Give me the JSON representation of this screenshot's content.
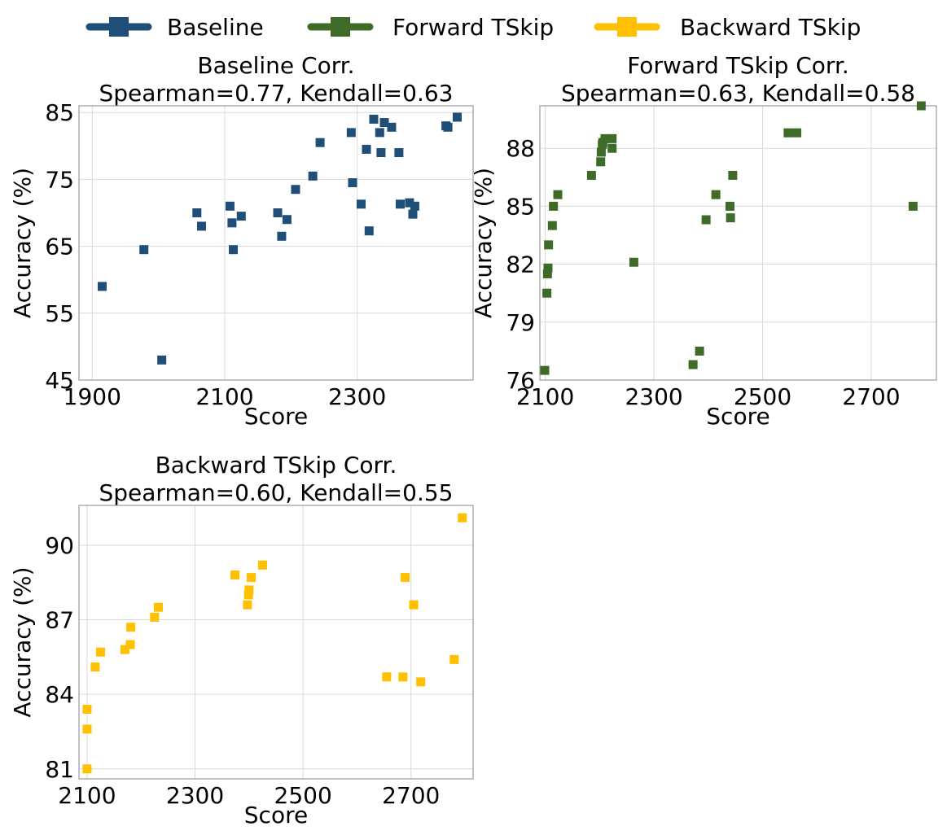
{
  "legend": [
    {
      "label": "Baseline",
      "color": "#1f4e79"
    },
    {
      "label": "Forward TSkip",
      "color": "#3f6b29"
    },
    {
      "label": "Backward TSkip",
      "color": "#ffc000"
    }
  ],
  "chart_data": [
    {
      "type": "scatter",
      "title_line1": "Baseline Corr.",
      "title_line2": "Spearman=0.77, Kendall=0.63",
      "xlabel": "Score",
      "ylabel": "Accuracy (%)",
      "xlim": [
        1880,
        2475
      ],
      "ylim": [
        45,
        86
      ],
      "xticks": [
        1900,
        2100,
        2300
      ],
      "yticks": [
        45,
        55,
        65,
        75,
        85
      ],
      "grid": true,
      "color": "#1f4e79",
      "x": [
        1915,
        1978,
        2005,
        2058,
        2065,
        2108,
        2111,
        2113,
        2125,
        2180,
        2186,
        2194,
        2207,
        2233,
        2244,
        2291,
        2293,
        2306,
        2314,
        2318,
        2325,
        2334,
        2336,
        2341,
        2352,
        2363,
        2365,
        2379,
        2384,
        2387,
        2434,
        2437,
        2451
      ],
      "y": [
        59.0,
        64.5,
        48.0,
        70.0,
        68.0,
        71.0,
        68.5,
        64.5,
        69.5,
        70.0,
        66.5,
        69.0,
        73.5,
        75.5,
        80.5,
        82.0,
        74.5,
        71.3,
        79.5,
        67.3,
        84.0,
        82.0,
        79.0,
        83.5,
        82.8,
        79.0,
        71.3,
        71.5,
        69.8,
        71.0,
        83.0,
        82.8,
        84.3
      ]
    },
    {
      "type": "scatter",
      "title_line1": "Forward TSkip Corr.",
      "title_line2": "Spearman=0.63, Kendall=0.58",
      "xlabel": "Score",
      "ylabel": "Accuracy (%)",
      "xlim": [
        2090,
        2820
      ],
      "ylim": [
        76,
        90.2
      ],
      "xticks": [
        2100,
        2300,
        2500,
        2700
      ],
      "yticks": [
        76,
        79,
        82,
        85,
        88
      ],
      "grid": true,
      "color": "#3f6b29",
      "x": [
        2099,
        2103,
        2104,
        2105,
        2106,
        2113,
        2115,
        2123,
        2185,
        2202,
        2203,
        2205,
        2206,
        2210,
        2223,
        2223,
        2263,
        2372,
        2384,
        2396,
        2414,
        2440,
        2441,
        2445,
        2547,
        2563,
        2777,
        2792
      ],
      "y": [
        76.5,
        80.5,
        81.5,
        81.8,
        83.0,
        84.0,
        85.0,
        85.6,
        86.6,
        87.3,
        87.8,
        88.2,
        88.3,
        88.5,
        88.5,
        88.0,
        82.1,
        76.8,
        77.5,
        84.3,
        85.6,
        85.0,
        84.4,
        86.6,
        88.8,
        88.8,
        85.0,
        90.2
      ]
    },
    {
      "type": "scatter",
      "title_line1": "Backward TSkip Corr.",
      "title_line2": "Spearman=0.60, Kendall=0.55",
      "xlabel": "Score",
      "ylabel": "Accuracy (%)",
      "xlim": [
        2085,
        2815
      ],
      "ylim": [
        80.6,
        91.6
      ],
      "xticks": [
        2100,
        2300,
        2500,
        2700
      ],
      "yticks": [
        81,
        84,
        87,
        90
      ],
      "grid": true,
      "color": "#ffc000",
      "x": [
        2100,
        2100,
        2100,
        2115,
        2125,
        2170,
        2180,
        2181,
        2225,
        2232,
        2374,
        2397,
        2399,
        2400,
        2404,
        2425,
        2655,
        2685,
        2689,
        2705,
        2718,
        2780,
        2795
      ],
      "y": [
        81.0,
        82.6,
        83.4,
        85.1,
        85.7,
        85.8,
        86.0,
        86.7,
        87.1,
        87.5,
        88.8,
        87.6,
        88.0,
        88.2,
        88.7,
        89.2,
        84.7,
        84.7,
        88.7,
        87.6,
        84.5,
        85.4,
        91.1
      ]
    }
  ]
}
